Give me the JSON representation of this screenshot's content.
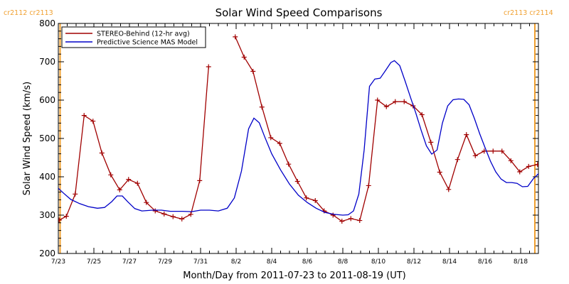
{
  "chart_data": {
    "type": "line",
    "title": "Solar Wind Speed Comparisons",
    "xlabel": "Month/Day from 2011-07-23 to 2011-08-19 (UT)",
    "ylabel": "Solar Wind Speed (km/s)",
    "ylim": [
      200,
      800
    ],
    "xlim": [
      0,
      27
    ],
    "yticks": [
      200,
      300,
      400,
      500,
      600,
      700,
      800
    ],
    "xticks": [
      {
        "x": 0,
        "label": "7/23"
      },
      {
        "x": 2,
        "label": "7/25"
      },
      {
        "x": 4,
        "label": "7/27"
      },
      {
        "x": 6,
        "label": "7/29"
      },
      {
        "x": 8,
        "label": "7/31"
      },
      {
        "x": 10,
        "label": "8/2"
      },
      {
        "x": 12,
        "label": "8/4"
      },
      {
        "x": 14,
        "label": "8/6"
      },
      {
        "x": 16,
        "label": "8/8"
      },
      {
        "x": 18,
        "label": "8/10"
      },
      {
        "x": 20,
        "label": "8/12"
      },
      {
        "x": 22,
        "label": "8/14"
      },
      {
        "x": 24,
        "label": "8/16"
      },
      {
        "x": 26,
        "label": "8/18"
      }
    ],
    "legend": {
      "placement": "top-left"
    },
    "carrington": [
      {
        "x": 0.1,
        "left_label": "cr2112",
        "right_label": "cr2113",
        "color": "#f0a030"
      },
      {
        "x": 26.8,
        "left_label": "cr2113",
        "right_label": "cr2114",
        "color": "#f0a030"
      }
    ],
    "series": [
      {
        "name": "STEREO-Behind (12-hr avg)",
        "color": "#a00000",
        "markers": true,
        "segments": [
          [
            [
              0.05,
              287
            ],
            [
              0.45,
              297
            ],
            [
              0.95,
              355
            ],
            [
              1.45,
              560
            ],
            [
              1.95,
              545
            ],
            [
              2.45,
              462
            ],
            [
              2.95,
              405
            ],
            [
              3.45,
              366
            ],
            [
              3.95,
              393
            ],
            [
              4.45,
              383
            ],
            [
              4.95,
              333
            ],
            [
              5.45,
              311
            ],
            [
              5.95,
              303
            ],
            [
              6.45,
              296
            ],
            [
              6.95,
              290
            ],
            [
              7.45,
              302
            ],
            [
              7.95,
              390
            ],
            [
              8.45,
              687
            ]
          ],
          [
            [
              9.95,
              765
            ],
            [
              10.45,
              712
            ],
            [
              10.95,
              675
            ],
            [
              11.45,
              582
            ],
            [
              11.95,
              502
            ],
            [
              12.45,
              487
            ],
            [
              12.95,
              433
            ],
            [
              13.45,
              388
            ],
            [
              13.95,
              345
            ],
            [
              14.45,
              338
            ],
            [
              14.95,
              311
            ],
            [
              15.45,
              300
            ],
            [
              15.95,
              284
            ],
            [
              16.45,
              291
            ],
            [
              16.95,
              286
            ],
            [
              17.45,
              377
            ],
            [
              17.95,
              600
            ],
            [
              18.45,
              583
            ],
            [
              18.95,
              596
            ],
            [
              19.45,
              596
            ],
            [
              19.95,
              585
            ],
            [
              20.45,
              562
            ],
            [
              20.95,
              490
            ],
            [
              21.45,
              412
            ],
            [
              21.95,
              367
            ],
            [
              22.45,
              445
            ],
            [
              22.95,
              510
            ],
            [
              23.45,
              455
            ],
            [
              23.95,
              467
            ],
            [
              24.45,
              467
            ],
            [
              24.95,
              467
            ],
            [
              25.45,
              442
            ],
            [
              25.95,
              413
            ],
            [
              26.45,
              427
            ],
            [
              26.95,
              432
            ],
            [
              27.45,
              414
            ]
          ]
        ]
      },
      {
        "name": "Predictive Science MAS Model",
        "color": "#0000c8",
        "markers": false,
        "segments": [
          [
            [
              -0.1,
              374
            ],
            [
              0.3,
              357
            ],
            [
              0.7,
              341
            ],
            [
              1.2,
              330
            ],
            [
              1.7,
              322
            ],
            [
              2.2,
              318
            ],
            [
              2.6,
              320
            ],
            [
              3.0,
              335
            ],
            [
              3.3,
              350
            ],
            [
              3.6,
              350
            ],
            [
              3.9,
              335
            ],
            [
              4.3,
              317
            ],
            [
              4.7,
              311
            ],
            [
              5.3,
              313
            ],
            [
              5.8,
              313
            ],
            [
              6.3,
              310
            ],
            [
              7.0,
              310
            ],
            [
              7.5,
              309
            ],
            [
              8.0,
              313
            ],
            [
              8.5,
              313
            ],
            [
              9.0,
              311
            ],
            [
              9.5,
              318
            ],
            [
              9.9,
              345
            ],
            [
              10.3,
              415
            ],
            [
              10.7,
              525
            ],
            [
              11.0,
              553
            ],
            [
              11.3,
              541
            ],
            [
              11.6,
              505
            ],
            [
              12.0,
              460
            ],
            [
              12.5,
              418
            ],
            [
              13.0,
              381
            ],
            [
              13.5,
              352
            ],
            [
              14.0,
              333
            ],
            [
              14.5,
              318
            ],
            [
              15.0,
              307
            ],
            [
              15.5,
              302
            ],
            [
              16.0,
              300
            ],
            [
              16.3,
              301
            ],
            [
              16.6,
              311
            ],
            [
              16.9,
              355
            ],
            [
              17.2,
              470
            ],
            [
              17.5,
              636
            ],
            [
              17.8,
              655
            ],
            [
              18.1,
              657
            ],
            [
              18.4,
              677
            ],
            [
              18.7,
              698
            ],
            [
              18.9,
              703
            ],
            [
              19.2,
              690
            ],
            [
              19.5,
              650
            ],
            [
              19.8,
              608
            ],
            [
              20.1,
              567
            ],
            [
              20.4,
              522
            ],
            [
              20.7,
              481
            ],
            [
              21.0,
              459
            ],
            [
              21.3,
              470
            ],
            [
              21.6,
              540
            ],
            [
              21.9,
              585
            ],
            [
              22.2,
              601
            ],
            [
              22.5,
              603
            ],
            [
              22.8,
              602
            ],
            [
              23.1,
              588
            ],
            [
              23.4,
              552
            ],
            [
              23.7,
              512
            ],
            [
              24.0,
              476
            ],
            [
              24.3,
              441
            ],
            [
              24.6,
              413
            ],
            [
              24.9,
              394
            ],
            [
              25.2,
              385
            ],
            [
              25.5,
              385
            ],
            [
              25.8,
              383
            ],
            [
              26.1,
              374
            ],
            [
              26.4,
              375
            ],
            [
              26.7,
              394
            ],
            [
              27.0,
              408
            ],
            [
              27.3,
              413
            ],
            [
              27.6,
              404
            ],
            [
              27.9,
              389
            ],
            [
              28.2,
              378
            ]
          ]
        ]
      }
    ]
  }
}
